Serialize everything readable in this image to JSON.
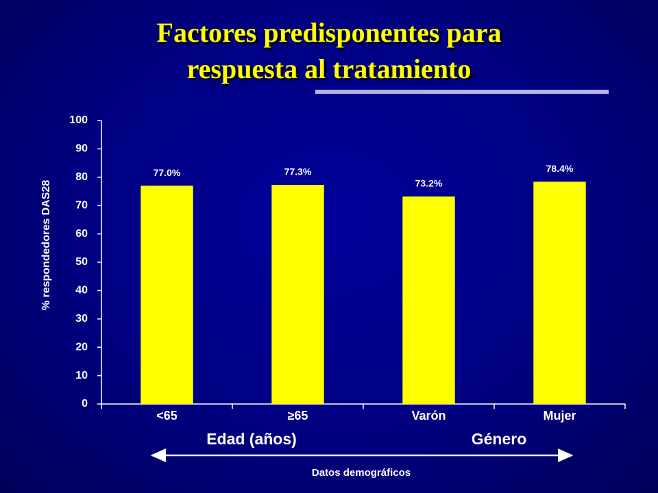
{
  "chart_data": {
    "type": "bar",
    "title_lines": [
      "Factores predisponentes para",
      "respuesta al tratamiento"
    ],
    "y_label": "% respondedores DAS28",
    "categories": [
      "<65",
      "≥65",
      "Varón",
      "Mujer"
    ],
    "values": [
      77.0,
      77.3,
      73.2,
      78.4
    ],
    "value_labels": [
      "77.0%",
      "77.3%",
      "73.2%",
      "78.4%"
    ],
    "color": "#ffff00",
    "ylim": [
      0,
      100
    ],
    "yticks": [
      0,
      10,
      20,
      30,
      40,
      50,
      60,
      70,
      80,
      90,
      100
    ],
    "group_labels": [
      "Edad (años)",
      "Género"
    ],
    "annotation": "Datos demográficos"
  }
}
